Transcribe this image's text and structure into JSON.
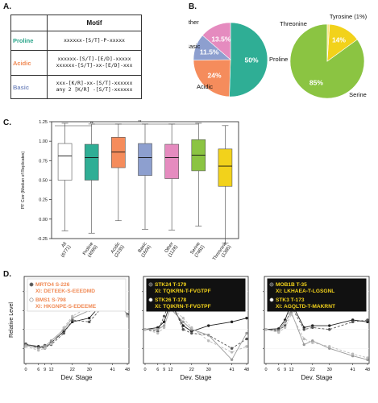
{
  "panels": {
    "a": "A.",
    "b": "B.",
    "c": "C.",
    "d": "D."
  },
  "motif_table": {
    "header": "Motif",
    "rows": [
      {
        "name": "Proline",
        "color": "#2aa58a",
        "lines": [
          "xxxxxx-[S/T]-P-xxxxx"
        ]
      },
      {
        "name": "Acidic",
        "color": "#f08a55",
        "lines": [
          "xxxxxx-[S/T]-[E/D]-xxxxx",
          "xxxxxx-[S/T]-xx-[E/D]-xxx"
        ]
      },
      {
        "name": "Basic",
        "color": "#7d8fc2",
        "lines": [
          "xxx-[K/R]-xx-[S/T]-xxxxxx",
          "any 2 [K/R] -[S/T]-xxxxxx"
        ]
      }
    ]
  },
  "icons": {
    "pf_legend": "filled-circle-marker-icon",
    "ft_legend": "open-circle-marker-icon"
  },
  "chart_data": [
    {
      "type": "pie",
      "categories": [
        "Proline",
        "Acidic",
        "Basic",
        "Other"
      ],
      "values": [
        50,
        24,
        11.5,
        13.5
      ],
      "labels": [
        "50%",
        "24%",
        "11.5%",
        "13.5%"
      ],
      "colors": [
        "#2fae95",
        "#f58c5c",
        "#8d9fcf",
        "#e58bbf"
      ]
    },
    {
      "type": "pie",
      "categories": [
        "Serine",
        "Threonine",
        "Tyrosine (1%)"
      ],
      "values": [
        85,
        14,
        1
      ],
      "labels": [
        "85%",
        "14%",
        ""
      ],
      "colors": [
        "#8bc442",
        "#f2d21b",
        "#ffe680"
      ]
    },
    {
      "type": "box",
      "ylabel": "PF Corr (Median of Replicates)",
      "ylim": [
        -0.25,
        1.25
      ],
      "yticks": [
        -0.25,
        0.0,
        0.25,
        0.5,
        0.75,
        1.0,
        1.25
      ],
      "ytick_labels": [
        "-0.25",
        "0.00",
        "0.25",
        "0.50",
        "0.75",
        "1.00",
        "1.25"
      ],
      "categories": [
        "All\n(6771)",
        "Proline\n(4090)",
        "Acidic\n(2235)",
        "Basic\n(1604)",
        "Other\n(1128)",
        "Serine\n(7482)",
        "Threonine\n(1385)"
      ],
      "colors": [
        "#ffffff",
        "#2fae95",
        "#f58c5c",
        "#8d9fcf",
        "#e58bbf",
        "#8bc442",
        "#f2d21b"
      ],
      "boxes": [
        {
          "min": -0.15,
          "q1": 0.5,
          "median": 0.81,
          "q3": 0.97,
          "max": 1.23
        },
        {
          "min": -0.18,
          "q1": 0.5,
          "median": 0.79,
          "q3": 0.96,
          "max": 1.22
        },
        {
          "min": -0.02,
          "q1": 0.66,
          "median": 0.86,
          "q3": 1.05,
          "max": 1.22
        },
        {
          "min": -0.13,
          "q1": 0.56,
          "median": 0.79,
          "q3": 0.97,
          "max": 1.22
        },
        {
          "min": -0.14,
          "q1": 0.52,
          "median": 0.79,
          "q3": 0.96,
          "max": 1.22
        },
        {
          "min": -0.09,
          "q1": 0.62,
          "median": 0.82,
          "q3": 1.02,
          "max": 1.23
        },
        {
          "min": -0.31,
          "q1": 0.42,
          "median": 0.68,
          "q3": 0.9,
          "max": 1.2
        }
      ],
      "annotations": [
        "**",
        "**"
      ]
    },
    {
      "type": "line",
      "ylabel": "Relative Level",
      "xlabel": "Dev. Stage",
      "x": [
        0,
        6,
        9,
        12,
        18,
        22,
        30,
        41,
        48
      ],
      "xtick_labels": [
        "0",
        "6",
        "9",
        "12",
        "22",
        "30",
        "41",
        "48"
      ],
      "legend": [
        {
          "name": "MRTO4 S-226",
          "seq": "XI: DETEEK-S-EEEDMD",
          "marker": "filled"
        },
        {
          "name": "BMS1 S-798",
          "seq": "XI: HKGNPE-S-EDEEME",
          "marker": "open"
        }
      ],
      "series": [
        {
          "name": "MRTO4 S-226 PF",
          "values": [
            0.6,
            0.55,
            0.5,
            0.65,
            0.95,
            1.2,
            1.3,
            2.0,
            1.38
          ]
        },
        {
          "name": "MRTO4 S-226 rep",
          "values": [
            0.62,
            0.52,
            0.58,
            0.6,
            0.9,
            1.25,
            1.2,
            1.9,
            1.4
          ]
        },
        {
          "name": "BMS1 S-798 PF",
          "values": [
            0.58,
            0.5,
            0.55,
            0.7,
            1.0,
            1.3,
            1.5,
            2.1,
            1.36
          ]
        },
        {
          "name": "BMS1 S-798 rep",
          "values": [
            0.55,
            0.45,
            0.5,
            0.62,
            1.05,
            1.35,
            1.6,
            2.15,
            1.35
          ]
        }
      ],
      "legend_bg": "#ffffff",
      "text_color": "#f08a55"
    },
    {
      "type": "line",
      "xlabel": "Dev. Stage",
      "x": [
        0,
        6,
        9,
        12,
        18,
        22,
        30,
        41,
        48
      ],
      "xtick_labels": [
        "0",
        "6",
        "9",
        "12",
        "22",
        "30",
        "41",
        "48"
      ],
      "legend": [
        {
          "name": "STK24 T-179",
          "seq": "XI: TQIKRN-T-FVGTPF",
          "marker": "filled"
        },
        {
          "name": "STK26 T-178",
          "seq": "XI: TQIKRN-T-FVGTPF",
          "marker": "open"
        }
      ],
      "series": [
        {
          "name": "STK24 T-179 PF",
          "values": [
            1.0,
            1.05,
            1.2,
            1.7,
            1.1,
            0.95,
            1.1,
            1.2,
            1.3
          ]
        },
        {
          "name": "STK24 T-179 rep",
          "values": [
            1.0,
            0.95,
            1.35,
            1.8,
            1.0,
            0.9,
            0.85,
            0.5,
            0.75
          ]
        },
        {
          "name": "STK26 T-178 PF",
          "values": [
            1.0,
            1.0,
            1.1,
            1.55,
            1.2,
            1.0,
            0.85,
            0.2,
            0.9
          ]
        },
        {
          "name": "STK26 T-178 rep",
          "values": [
            1.0,
            0.9,
            1.05,
            1.6,
            1.3,
            1.05,
            0.7,
            0.4,
            0.55
          ]
        }
      ],
      "legend_bg": "#111111",
      "text_color": "#f2d21b"
    },
    {
      "type": "line",
      "xlabel": "Dev. Stage",
      "x": [
        0,
        6,
        9,
        12,
        18,
        22,
        30,
        41,
        48
      ],
      "xtick_labels": [
        "0",
        "6",
        "9",
        "12",
        "22",
        "30",
        "41",
        "48"
      ],
      "legend": [
        {
          "name": "MOB1B T-35",
          "seq": "XI: LKHAEA-T-LGSGNL",
          "marker": "filled"
        },
        {
          "name": "STK3 T-173",
          "seq": "XI: AGQLTD-T-MAKRNT",
          "marker": "open"
        }
      ],
      "series": [
        {
          "name": "MOB1B T-35 PF",
          "values": [
            1.0,
            1.02,
            1.25,
            1.7,
            1.05,
            1.1,
            1.1,
            1.25,
            1.2
          ]
        },
        {
          "name": "MOB1B T-35 rep",
          "values": [
            1.0,
            0.98,
            1.1,
            1.6,
            1.0,
            1.05,
            1.0,
            1.2,
            1.25
          ]
        },
        {
          "name": "STK3 T-173 PF",
          "values": [
            1.0,
            0.95,
            1.2,
            1.45,
            0.6,
            0.7,
            0.5,
            0.3,
            0.2
          ]
        },
        {
          "name": "STK3 T-173 rep",
          "values": [
            1.0,
            0.92,
            1.05,
            1.4,
            0.75,
            0.65,
            0.55,
            0.35,
            0.25
          ]
        }
      ],
      "legend_bg": "#111111",
      "text_color": "#f2d21b"
    }
  ]
}
